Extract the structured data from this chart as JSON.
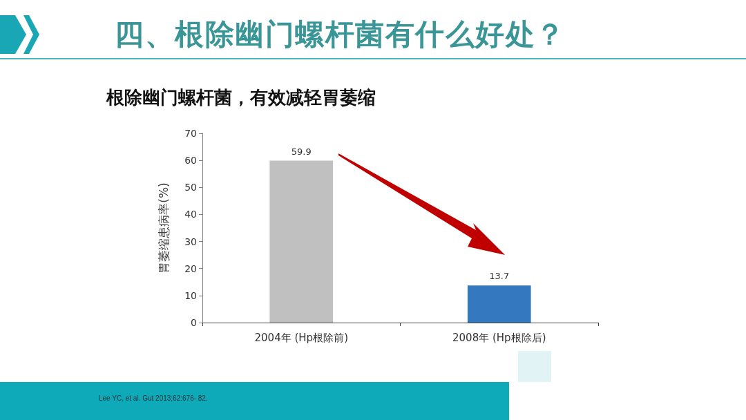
{
  "chart_data": {
    "type": "bar",
    "title": "四、根除幽门螺杆菌有什么好处？",
    "subtitle": "根除幽门螺杆菌，有效减轻胃萎缩",
    "ylabel": "胃萎缩患病率(%)",
    "categories": [
      "2004年 (Hp根除前)",
      "2008年 (Hp根除后)"
    ],
    "values": [
      59.9,
      13.7
    ],
    "colors": [
      "#c0c0c0",
      "#3479c0"
    ],
    "ylim": [
      0,
      70
    ],
    "yticks": [
      0,
      10,
      20,
      30,
      40,
      50,
      60,
      70
    ],
    "data_labels": true,
    "grid": false,
    "annotations": [
      "Lee YC, et al. Gut 2013;62:676- 82."
    ]
  }
}
